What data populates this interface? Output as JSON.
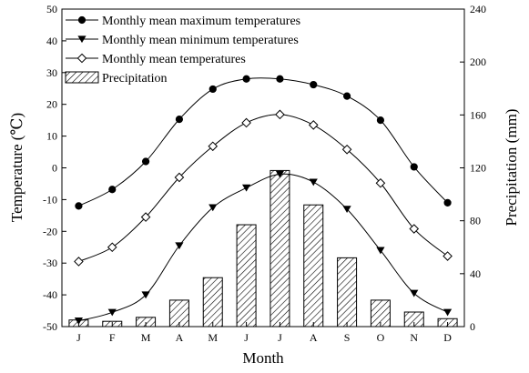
{
  "chart_data": {
    "type": "bar+line",
    "categories": [
      "J",
      "F",
      "M",
      "A",
      "M",
      "J",
      "J",
      "A",
      "S",
      "O",
      "N",
      "D"
    ],
    "xlabel": "Month",
    "ylabel_left": "Temperature (℃)",
    "ylabel_right": "Precipitation (mm)",
    "ylim_left": [
      -50,
      50
    ],
    "yticks_left": [
      -50,
      -40,
      -30,
      -20,
      -10,
      0,
      10,
      20,
      30,
      40,
      50
    ],
    "ylim_right": [
      0,
      240
    ],
    "yticks_right": [
      0,
      40,
      80,
      120,
      160,
      200,
      240
    ],
    "grid": false,
    "legend_position": "top-left",
    "series": [
      {
        "name": "Monthly mean maximum temperatures",
        "axis": "left",
        "kind": "line",
        "marker": "filled-circle",
        "values": [
          -12,
          -6.8,
          2,
          15.3,
          24.8,
          28,
          28,
          26.2,
          22.6,
          15,
          0.3,
          -11
        ]
      },
      {
        "name": "Monthly mean minimum temperatures",
        "axis": "left",
        "kind": "line",
        "marker": "filled-triangle-down",
        "values": [
          -48.2,
          -45.5,
          -40,
          -24.5,
          -12.5,
          -6.3,
          -2,
          -4.5,
          -13,
          -26,
          -39.5,
          -45.5
        ]
      },
      {
        "name": "Monthly mean temperatures",
        "axis": "left",
        "kind": "line",
        "marker": "open-diamond",
        "values": [
          -29.5,
          -25,
          -15.5,
          -3,
          6.8,
          14.2,
          16.8,
          13.5,
          5.8,
          -4.8,
          -19.2,
          -27.8
        ]
      },
      {
        "name": "Precipitation",
        "axis": "right",
        "kind": "bar",
        "pattern": "hatched",
        "values": [
          5,
          4,
          7,
          20,
          37,
          77,
          118,
          92,
          52,
          20,
          11,
          6
        ]
      }
    ]
  }
}
